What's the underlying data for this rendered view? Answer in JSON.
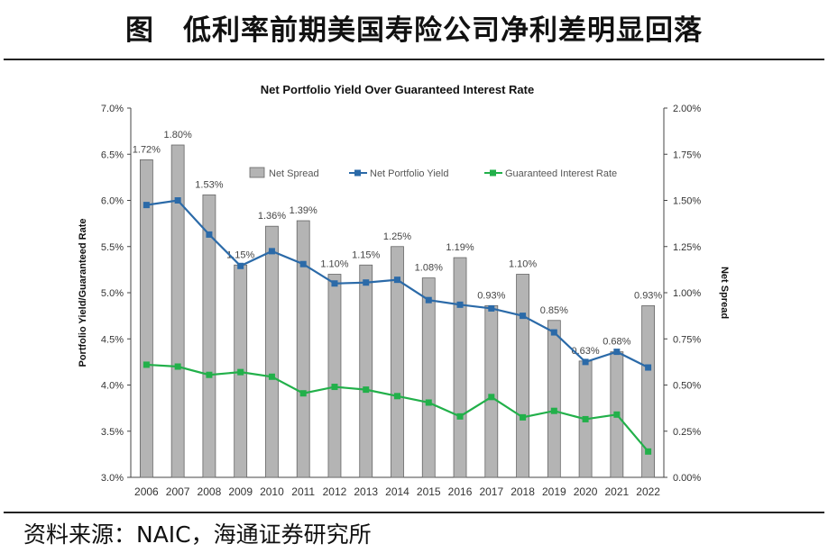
{
  "page": {
    "title": "图　低利率前期美国寿险公司净利差明显回落",
    "source": "资料来源：NAIC，海通证券研究所"
  },
  "colors": {
    "bar_fill": "#b4b4b4",
    "bar_stroke": "#666666",
    "portfolio_line": "#2b6aa8",
    "guaranteed_line": "#22b04a",
    "axis": "#444444",
    "text": "#333333"
  },
  "chart_data": {
    "type": "bar+line",
    "title": "Net Portfolio Yield Over Guaranteed Interest Rate",
    "ylabel_left": "Portfolio Yield/Guaranteed Rate",
    "ylabel_right": "Net Spread",
    "categories": [
      "2006",
      "2007",
      "2008",
      "2009",
      "2010",
      "2011",
      "2012",
      "2013",
      "2014",
      "2015",
      "2016",
      "2017",
      "2018",
      "2019",
      "2020",
      "2021",
      "2022"
    ],
    "left_axis": {
      "min": 3.0,
      "max": 7.0,
      "step": 0.5,
      "ticks": [
        "3.0%",
        "3.5%",
        "4.0%",
        "4.5%",
        "5.0%",
        "5.5%",
        "6.0%",
        "6.5%",
        "7.0%"
      ]
    },
    "right_axis": {
      "min": 0.0,
      "max": 2.0,
      "step": 0.25,
      "ticks": [
        "0.00%",
        "0.25%",
        "0.50%",
        "0.75%",
        "1.00%",
        "1.25%",
        "1.50%",
        "1.75%",
        "2.00%"
      ]
    },
    "legend": {
      "position": "top-center",
      "labels": [
        "Net Spread",
        "Net Portfolio Yield",
        "Guaranteed Interest Rate"
      ]
    },
    "series": [
      {
        "name": "Net Spread",
        "type": "bar",
        "axis": "right",
        "values": [
          1.72,
          1.8,
          1.53,
          1.15,
          1.36,
          1.39,
          1.1,
          1.15,
          1.25,
          1.08,
          1.19,
          0.93,
          1.1,
          0.85,
          0.63,
          0.68,
          0.93
        ],
        "labels": [
          "1.72%",
          "1.80%",
          "1.53%",
          "1.15%",
          "1.36%",
          "1.39%",
          "1.10%",
          "1.15%",
          "1.25%",
          "1.08%",
          "1.19%",
          "0.93%",
          "1.10%",
          "0.85%",
          "0.63%",
          "0.68%",
          "0.93%"
        ]
      },
      {
        "name": "Net Portfolio Yield",
        "type": "line",
        "axis": "left",
        "values": [
          5.95,
          6.0,
          5.63,
          5.29,
          5.45,
          5.31,
          5.1,
          5.11,
          5.14,
          4.92,
          4.87,
          4.83,
          4.75,
          4.57,
          4.25,
          4.36,
          4.19
        ]
      },
      {
        "name": "Guaranteed Interest Rate",
        "type": "line",
        "axis": "left",
        "values": [
          4.22,
          4.2,
          4.11,
          4.14,
          4.09,
          3.91,
          3.98,
          3.95,
          3.88,
          3.81,
          3.66,
          3.87,
          3.65,
          3.72,
          3.63,
          3.68,
          3.28
        ]
      }
    ]
  }
}
